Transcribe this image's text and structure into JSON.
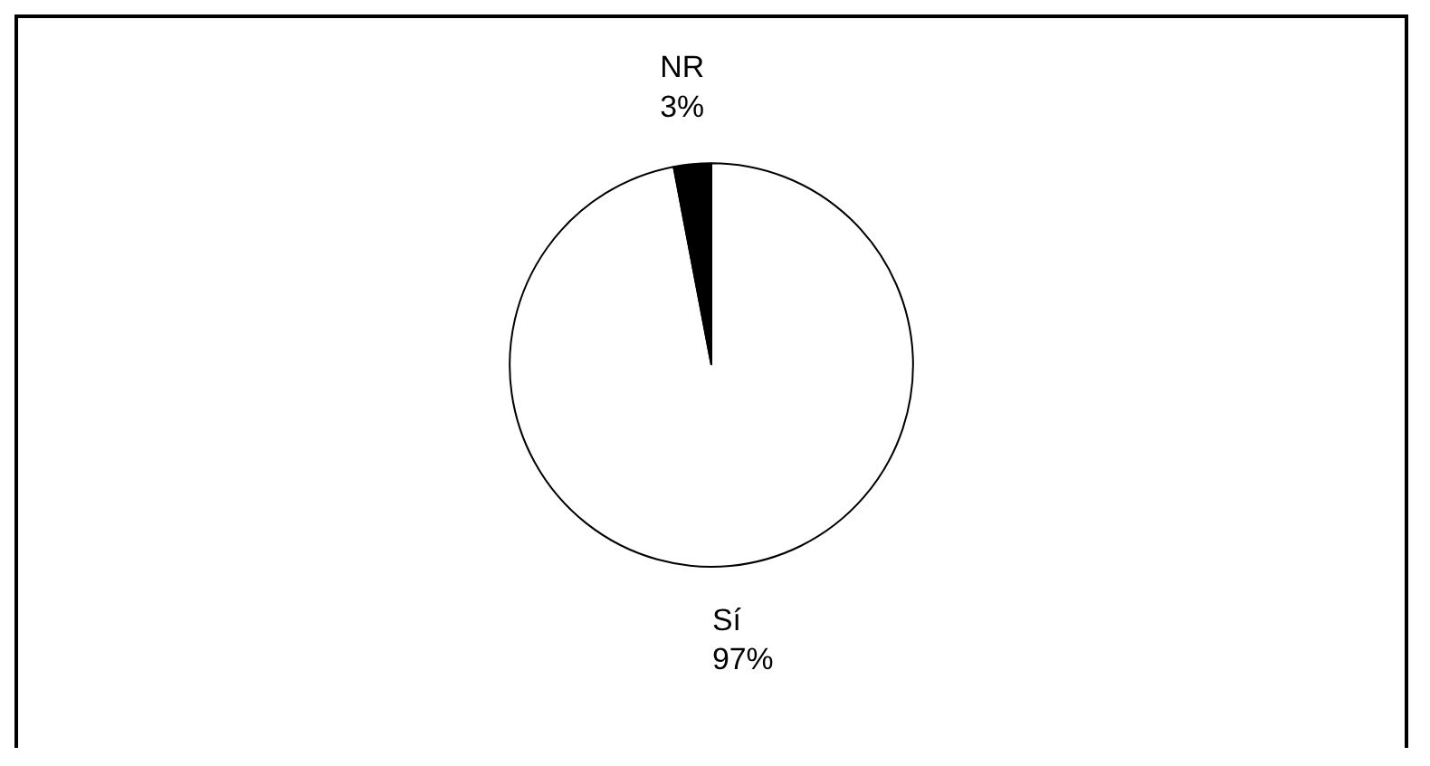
{
  "chart_data": {
    "type": "pie",
    "categories": [
      "Sí",
      "NR"
    ],
    "values": [
      97,
      3
    ],
    "colors": [
      "#ffffff",
      "#000000"
    ],
    "value_labels": [
      "97%",
      "3%"
    ],
    "legend": false
  }
}
